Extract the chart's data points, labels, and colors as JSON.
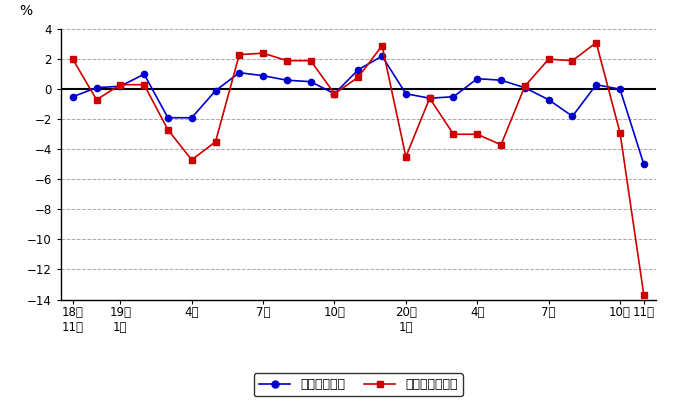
{
  "ylabel": "%",
  "blue_vals": [
    -0.5,
    0.1,
    0.2,
    1.0,
    -1.9,
    -1.9,
    -0.1,
    1.1,
    0.9,
    0.6,
    0.5,
    -0.3,
    1.3,
    2.2,
    -0.3,
    -0.6,
    -0.5,
    0.7,
    0.6,
    0.1,
    -0.7,
    -1.8,
    0.3,
    0.0,
    -5.0
  ],
  "red_vals": [
    2.0,
    -0.7,
    0.3,
    0.3,
    -2.7,
    -4.7,
    -3.5,
    2.3,
    2.4,
    1.9,
    1.9,
    -0.3,
    0.8,
    2.9,
    -4.5,
    -0.6,
    -3.0,
    -3.0,
    -3.7,
    0.2,
    2.0,
    1.9,
    3.1,
    -2.9,
    -13.7
  ],
  "blue_color": "#0000cc",
  "red_color": "#cc0000",
  "bg_color": "#ffffff",
  "ylim": [
    -14,
    4
  ],
  "yticks": [
    -14,
    -12,
    -10,
    -8,
    -6,
    -4,
    -2,
    0,
    2,
    4
  ],
  "xtick_pos": [
    0,
    2,
    5,
    8,
    11,
    14,
    17,
    20,
    23,
    24
  ],
  "xtick_top_labels": [
    "18年",
    "19年",
    "",
    "",
    "",
    "20年",
    "",
    "",
    "",
    ""
  ],
  "xtick_bot_labels": [
    "11月",
    "1月",
    "4月",
    "7月",
    "10月",
    "1月",
    "4月",
    "7月",
    "10月",
    "11月"
  ],
  "legend_labels": [
    "総実労働時間",
    "所定外労働時間"
  ],
  "grid_color": "#aaaaaa",
  "xlim": [
    -0.5,
    24.5
  ]
}
